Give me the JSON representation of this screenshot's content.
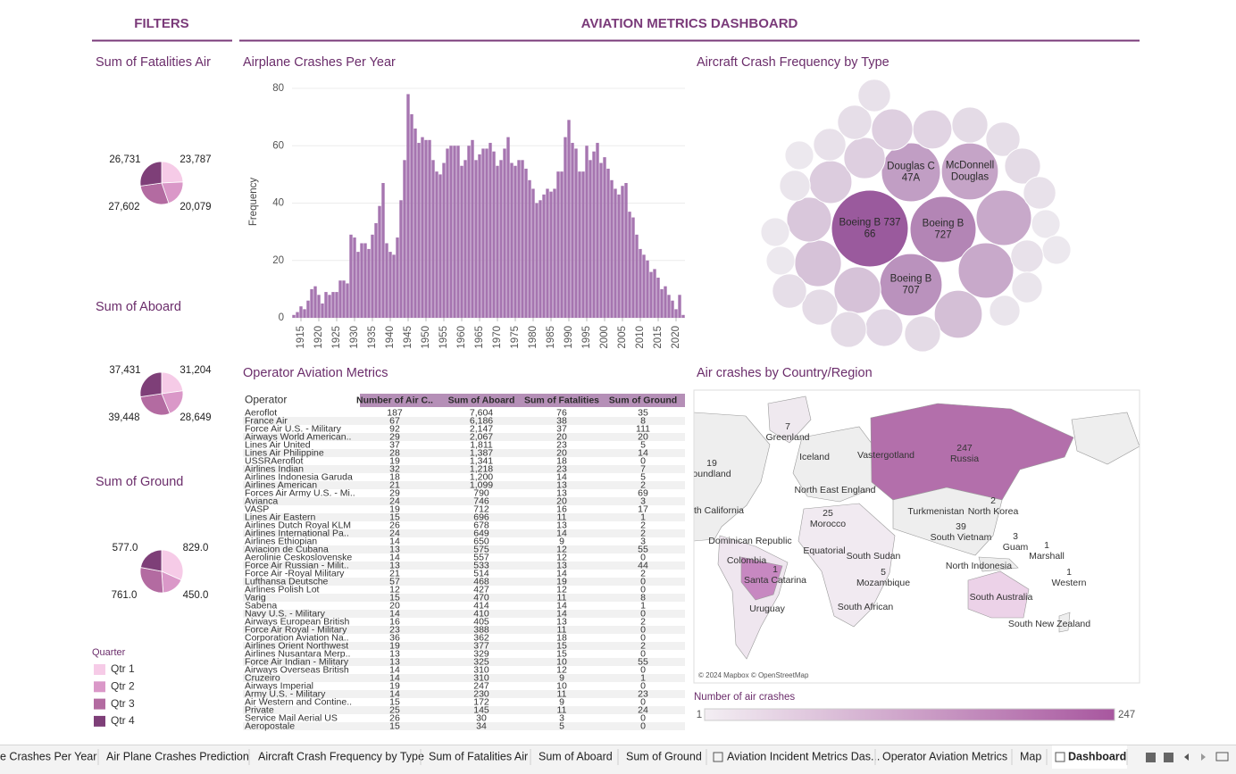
{
  "header": {
    "filters": "FILTERS",
    "title": "AVIATION METRICS DASHBOARD"
  },
  "chart_data": [
    {
      "type": "pie",
      "title": "Sum of Fatalities Air",
      "values": [
        23787,
        20079,
        27602,
        26731
      ],
      "value_labels": [
        "23,787",
        "20,079",
        "27,602",
        "26,731"
      ],
      "colors": [
        "#f6cbe7",
        "#da98c8",
        "#b36ba1",
        "#7e3f78"
      ]
    },
    {
      "type": "pie",
      "title": "Sum of Aboard",
      "values": [
        31204,
        28649,
        39448,
        37431
      ],
      "value_labels": [
        "31,204",
        "28,649",
        "39,448",
        "37,431"
      ],
      "colors": [
        "#f6cbe7",
        "#da98c8",
        "#b36ba1",
        "#7e3f78"
      ]
    },
    {
      "type": "pie",
      "title": "Sum of Ground",
      "values": [
        829,
        450,
        761,
        577
      ],
      "value_labels": [
        "829.0",
        "450.0",
        "761.0",
        "577.0"
      ],
      "colors": [
        "#f6cbe7",
        "#da98c8",
        "#b36ba1",
        "#7e3f78"
      ]
    },
    {
      "type": "bar",
      "title": "Airplane Crashes Per Year",
      "ylabel": "Frequency",
      "color": "#a675b0",
      "grid": true,
      "x": [
        1913,
        1914,
        1915,
        1916,
        1917,
        1918,
        1919,
        1920,
        1921,
        1922,
        1923,
        1924,
        1925,
        1926,
        1927,
        1928,
        1929,
        1930,
        1931,
        1932,
        1933,
        1934,
        1935,
        1936,
        1937,
        1938,
        1939,
        1940,
        1941,
        1942,
        1943,
        1944,
        1945,
        1946,
        1947,
        1948,
        1949,
        1950,
        1951,
        1952,
        1953,
        1954,
        1955,
        1956,
        1957,
        1958,
        1959,
        1960,
        1961,
        1962,
        1963,
        1964,
        1965,
        1966,
        1967,
        1968,
        1969,
        1970,
        1971,
        1972,
        1973,
        1974,
        1975,
        1976,
        1977,
        1978,
        1979,
        1980,
        1981,
        1982,
        1983,
        1984,
        1985,
        1986,
        1987,
        1988,
        1989,
        1990,
        1991,
        1992,
        1993,
        1994,
        1995,
        1996,
        1997,
        1998,
        1999,
        2000,
        2001,
        2002,
        2003,
        2004,
        2005,
        2006,
        2007,
        2008,
        2009,
        2010,
        2011,
        2012,
        2013,
        2014,
        2015,
        2016,
        2017,
        2018,
        2019,
        2020,
        2021,
        2022
      ],
      "values": [
        1,
        2,
        4,
        3,
        6,
        10,
        11,
        8,
        5,
        9,
        8,
        9,
        9,
        13,
        13,
        12,
        29,
        28,
        23,
        26,
        26,
        24,
        29,
        33,
        39,
        47,
        26,
        23,
        22,
        28,
        41,
        55,
        78,
        71,
        66,
        61,
        63,
        62,
        62,
        55,
        51,
        50,
        54,
        59,
        60,
        60,
        60,
        53,
        55,
        60,
        62,
        55,
        57,
        59,
        59,
        61,
        58,
        53,
        55,
        59,
        63,
        54,
        53,
        55,
        55,
        52,
        48,
        45,
        40,
        41,
        43,
        45,
        44,
        45,
        51,
        51,
        63,
        69,
        61,
        59,
        51,
        51,
        60,
        55,
        58,
        61,
        54,
        56,
        52,
        48,
        45,
        43,
        46,
        47,
        37,
        35,
        29,
        24,
        22,
        20,
        16,
        17,
        14,
        10,
        11,
        8,
        6,
        3,
        8,
        1
      ],
      "xlim": [
        1912.5,
        2022.5
      ],
      "xticks": [
        1915,
        1920,
        1925,
        1930,
        1935,
        1940,
        1945,
        1950,
        1955,
        1960,
        1965,
        1970,
        1975,
        1980,
        1985,
        1990,
        1995,
        2000,
        2005,
        2010,
        2015,
        2020
      ],
      "ylim": [
        0,
        80
      ],
      "yticks": [
        0,
        20,
        40,
        60,
        80
      ]
    },
    {
      "type": "bubble",
      "title": "Aircraft Crash Frequency by Type",
      "colors": [
        "#ece8ee",
        "#9a5a9d"
      ],
      "labels": [
        [
          "Boeing B 737",
          "66"
        ],
        [
          "Boeing B",
          "727"
        ],
        [
          "Boeing B",
          "707"
        ],
        [
          "Douglas C",
          "47A"
        ],
        [
          "McDonnell",
          "Douglas"
        ],
        null,
        null,
        null,
        null,
        null,
        null,
        null,
        null,
        null,
        null,
        null,
        null,
        null,
        null,
        null,
        null,
        null,
        null,
        null,
        null,
        null,
        null,
        null,
        null,
        null,
        null,
        null,
        null,
        null,
        null,
        null
      ],
      "values": [
        100,
        74,
        66,
        59,
        55,
        52,
        52,
        39,
        37,
        37,
        34,
        31,
        29,
        29,
        26,
        22,
        20,
        22,
        18,
        14,
        14,
        18,
        16,
        16,
        22,
        24,
        22,
        22,
        20,
        14,
        14,
        16,
        14,
        18,
        20,
        18
      ]
    }
  ],
  "legend": {
    "title": "Quarter",
    "items": [
      "Qtr 1",
      "Qtr 2",
      "Qtr 3",
      "Qtr 4"
    ],
    "colors": [
      "#f6cbe7",
      "#da98c8",
      "#b36ba1",
      "#7e3f78"
    ]
  },
  "table": {
    "title": "Operator Aviation Metrics",
    "columns": [
      "Operator",
      "Number of Air C..",
      "Sum of Aboard",
      "Sum of Fatalities",
      "Sum of Ground"
    ],
    "rows": [
      [
        "Aeroflot",
        "187",
        "7,604",
        "76",
        "35"
      ],
      [
        "France Air",
        "67",
        "6,186",
        "38",
        "8"
      ],
      [
        "Force Air U.S. - Military",
        "92",
        "2,147",
        "37",
        "111"
      ],
      [
        "Airways World American..",
        "29",
        "2,067",
        "20",
        "20"
      ],
      [
        "Lines Air United",
        "37",
        "1,811",
        "23",
        "5"
      ],
      [
        "Lines Air Philippine",
        "28",
        "1,387",
        "20",
        "14"
      ],
      [
        "USSRAeroflot",
        "19",
        "1,341",
        "18",
        "0"
      ],
      [
        "Airlines Indian",
        "32",
        "1,218",
        "23",
        "7"
      ],
      [
        "Airlines Indonesia Garuda",
        "18",
        "1,200",
        "14",
        "5"
      ],
      [
        "Airlines American",
        "21",
        "1,099",
        "13",
        "2"
      ],
      [
        "Forces Air Army U.S. - Mi..",
        "29",
        "790",
        "13",
        "69"
      ],
      [
        "Avianca",
        "24",
        "746",
        "20",
        "3"
      ],
      [
        "VASP",
        "19",
        "712",
        "16",
        "17"
      ],
      [
        "Lines Air Eastern",
        "15",
        "696",
        "11",
        "1"
      ],
      [
        "Airlines Dutch Royal KLM",
        "26",
        "678",
        "13",
        "2"
      ],
      [
        "Airlines International Pa..",
        "24",
        "649",
        "14",
        "2"
      ],
      [
        "Airlines Ethiopian",
        "14",
        "650",
        "9",
        "3"
      ],
      [
        "Aviacion de Cubana",
        "13",
        "575",
        "12",
        "55"
      ],
      [
        "Aerolinie Ceskoslovenske",
        "14",
        "557",
        "12",
        "0"
      ],
      [
        "Force Air Russian - Milit..",
        "13",
        "533",
        "13",
        "44"
      ],
      [
        "Force Air -Royal Military",
        "21",
        "514",
        "14",
        "2"
      ],
      [
        "Lufthansa Deutsche",
        "57",
        "468",
        "19",
        "0"
      ],
      [
        "Airlines Polish Lot",
        "12",
        "427",
        "12",
        "0"
      ],
      [
        "Varig",
        "15",
        "470",
        "11",
        "8"
      ],
      [
        "Sabena",
        "20",
        "414",
        "14",
        "1"
      ],
      [
        "Navy U.S. - Military",
        "14",
        "410",
        "14",
        "0"
      ],
      [
        "Airways European British",
        "16",
        "405",
        "13",
        "2"
      ],
      [
        "Force Air Royal - Military",
        "23",
        "388",
        "11",
        "0"
      ],
      [
        "Corporation Aviation Na..",
        "36",
        "362",
        "18",
        "0"
      ],
      [
        "Airlines Orient Northwest",
        "19",
        "377",
        "15",
        "2"
      ],
      [
        "Airlines Nusantara Merp..",
        "13",
        "329",
        "15",
        "0"
      ],
      [
        "Force Air Indian - Military",
        "13",
        "325",
        "10",
        "55"
      ],
      [
        "Airways Overseas British",
        "14",
        "310",
        "12",
        "0"
      ],
      [
        "Cruzeiro",
        "14",
        "310",
        "9",
        "1"
      ],
      [
        "Airways Imperial",
        "19",
        "247",
        "10",
        "0"
      ],
      [
        "Army U.S. - Military",
        "14",
        "230",
        "11",
        "23"
      ],
      [
        "Air Western and Contine..",
        "15",
        "172",
        "9",
        "0"
      ],
      [
        "Private",
        "25",
        "145",
        "11",
        "24"
      ],
      [
        "Service Mail Aerial US",
        "26",
        "30",
        "3",
        "0"
      ],
      [
        "Aeropostale",
        "15",
        "34",
        "5",
        "0"
      ]
    ]
  },
  "map": {
    "title": "Air crashes by Country/Region",
    "credit": "© 2024 Mapbox © OpenStreetMap",
    "labels": [
      {
        "count": 247,
        "name": "Russia"
      },
      {
        "count": 7,
        "name": "Greenland"
      },
      {
        "count": 19,
        "name": "oundland"
      },
      {
        "name": "Iceland"
      },
      {
        "name": "Vastergotland"
      },
      {
        "name": "North East England"
      },
      {
        "name": "Turkmenistan"
      },
      {
        "count": 2,
        "name": "North Korea"
      },
      {
        "name": "th California"
      },
      {
        "count": 25,
        "name": "Morocco"
      },
      {
        "count": 39,
        "name": "South Vietnam"
      },
      {
        "count": 3,
        "name": "Guam"
      },
      {
        "count": 1,
        "name": "Marshall"
      },
      {
        "name": "Dominican Republic"
      },
      {
        "name": "Equatorial"
      },
      {
        "name": "South Sudan"
      },
      {
        "name": "Colombia"
      },
      {
        "name": "North Indonesia"
      },
      {
        "count": 1,
        "name": "Santa Catarina"
      },
      {
        "count": 5,
        "name": "Mozambique"
      },
      {
        "count": 1,
        "name": "Western"
      },
      {
        "name": "South Australia"
      },
      {
        "name": "Uruguay"
      },
      {
        "name": "South African"
      },
      {
        "name": "South New Zealand"
      }
    ],
    "legend": {
      "title": "Number of air crashes",
      "min": 1,
      "max": 247,
      "colors": [
        "#f3eef3",
        "#a8579f"
      ]
    }
  },
  "tabs": [
    {
      "label": "e Crashes Per Year"
    },
    {
      "label": "Air Plane Crashes Prediction"
    },
    {
      "label": "Aircraft Crash Frequency by Type"
    },
    {
      "label": "Sum of Fatalities Air"
    },
    {
      "label": "Sum of Aboard"
    },
    {
      "label": "Sum of Ground"
    },
    {
      "label": "Aviation Incident Metrics Das..."
    },
    {
      "label": "Operator Aviation Metrics"
    },
    {
      "label": "Map"
    },
    {
      "label": "Dashboard",
      "active": true
    }
  ]
}
